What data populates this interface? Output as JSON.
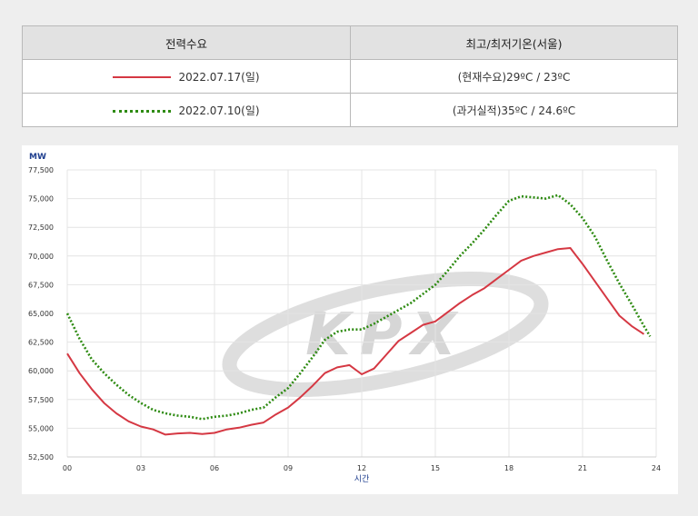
{
  "legend": {
    "header_series": "전력수요",
    "header_temp": "최고/최저기온(서울)",
    "rows": [
      {
        "date": "2022.07.17(일)",
        "temp": "(현재수요)29ºC / 23ºC",
        "style": "solid",
        "color": "#d53843"
      },
      {
        "date": "2022.07.10(일)",
        "temp": "(과거실적)35ºC / 24.6ºC",
        "style": "dotted",
        "color": "#2e8b12"
      }
    ]
  },
  "watermark": "KPX",
  "chart_data": {
    "type": "line",
    "title": "",
    "ylabel": "MW",
    "xlabel": "시간",
    "xlim": [
      0,
      24
    ],
    "ylim": [
      52500,
      77500
    ],
    "x_ticks": [
      "00",
      "03",
      "06",
      "09",
      "12",
      "15",
      "18",
      "21",
      "24"
    ],
    "y_ticks": [
      "52,500",
      "55,000",
      "57,500",
      "60,000",
      "62,500",
      "65,000",
      "67,500",
      "70,000",
      "72,500",
      "75,000",
      "77,500"
    ],
    "grid": true,
    "series": [
      {
        "name": "2022.07.17(일)",
        "color": "#d53843",
        "style": "solid",
        "points": [
          [
            0.0,
            61500
          ],
          [
            0.5,
            59800
          ],
          [
            1.0,
            58400
          ],
          [
            1.5,
            57200
          ],
          [
            2.0,
            56300
          ],
          [
            2.5,
            55600
          ],
          [
            3.0,
            55150
          ],
          [
            3.5,
            54900
          ],
          [
            4.0,
            54450
          ],
          [
            4.5,
            54550
          ],
          [
            5.0,
            54600
          ],
          [
            5.5,
            54500
          ],
          [
            6.0,
            54600
          ],
          [
            6.5,
            54900
          ],
          [
            7.0,
            55050
          ],
          [
            7.5,
            55300
          ],
          [
            8.0,
            55500
          ],
          [
            8.5,
            56200
          ],
          [
            9.0,
            56800
          ],
          [
            9.5,
            57700
          ],
          [
            10.0,
            58700
          ],
          [
            10.5,
            59800
          ],
          [
            11.0,
            60300
          ],
          [
            11.5,
            60500
          ],
          [
            12.0,
            59700
          ],
          [
            12.5,
            60200
          ],
          [
            13.0,
            61400
          ],
          [
            13.5,
            62600
          ],
          [
            14.0,
            63300
          ],
          [
            14.5,
            64000
          ],
          [
            15.0,
            64300
          ],
          [
            15.5,
            65100
          ],
          [
            16.0,
            65900
          ],
          [
            16.5,
            66600
          ],
          [
            17.0,
            67200
          ],
          [
            17.5,
            68000
          ],
          [
            18.0,
            68800
          ],
          [
            18.5,
            69600
          ],
          [
            19.0,
            70000
          ],
          [
            19.5,
            70300
          ],
          [
            20.0,
            70600
          ],
          [
            20.5,
            70700
          ],
          [
            21.0,
            69300
          ],
          [
            21.5,
            67800
          ],
          [
            22.0,
            66300
          ],
          [
            22.5,
            64800
          ],
          [
            23.0,
            63900
          ],
          [
            23.5,
            63200
          ]
        ]
      },
      {
        "name": "2022.07.10(일)",
        "color": "#2e8b12",
        "style": "dotted",
        "points": [
          [
            0.0,
            65000
          ],
          [
            0.5,
            62800
          ],
          [
            1.0,
            61000
          ],
          [
            1.5,
            59800
          ],
          [
            2.0,
            58800
          ],
          [
            2.5,
            57900
          ],
          [
            3.0,
            57200
          ],
          [
            3.5,
            56600
          ],
          [
            4.0,
            56300
          ],
          [
            4.5,
            56100
          ],
          [
            5.0,
            56000
          ],
          [
            5.5,
            55800
          ],
          [
            6.0,
            56000
          ],
          [
            6.5,
            56100
          ],
          [
            7.0,
            56300
          ],
          [
            7.5,
            56600
          ],
          [
            8.0,
            56800
          ],
          [
            8.5,
            57700
          ],
          [
            9.0,
            58500
          ],
          [
            9.5,
            59800
          ],
          [
            10.0,
            61200
          ],
          [
            10.5,
            62700
          ],
          [
            11.0,
            63400
          ],
          [
            11.5,
            63600
          ],
          [
            12.0,
            63600
          ],
          [
            12.5,
            64100
          ],
          [
            13.0,
            64700
          ],
          [
            13.5,
            65300
          ],
          [
            14.0,
            65900
          ],
          [
            14.5,
            66700
          ],
          [
            15.0,
            67500
          ],
          [
            15.5,
            68700
          ],
          [
            16.0,
            70000
          ],
          [
            16.5,
            71100
          ],
          [
            17.0,
            72300
          ],
          [
            17.5,
            73600
          ],
          [
            18.0,
            74800
          ],
          [
            18.5,
            75200
          ],
          [
            19.0,
            75100
          ],
          [
            19.5,
            75000
          ],
          [
            20.0,
            75300
          ],
          [
            20.5,
            74500
          ],
          [
            21.0,
            73300
          ],
          [
            21.5,
            71700
          ],
          [
            22.0,
            69600
          ],
          [
            22.5,
            67600
          ],
          [
            23.0,
            65800
          ],
          [
            23.5,
            63900
          ],
          [
            23.75,
            63000
          ]
        ]
      }
    ]
  }
}
